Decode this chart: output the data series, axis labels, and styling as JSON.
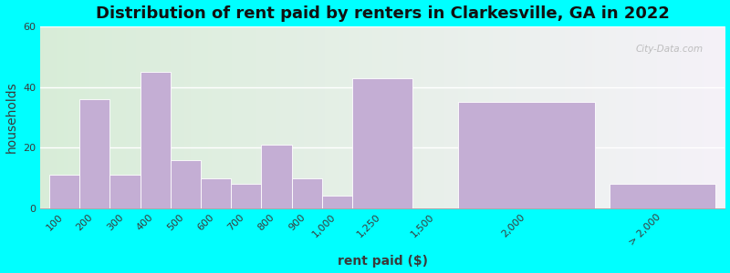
{
  "title": "Distribution of rent paid by renters in Clarkesville, GA in 2022",
  "xlabel": "rent paid ($)",
  "ylabel": "households",
  "background_color": "#00FFFF",
  "bar_color": "#c4aed4",
  "ylim": [
    0,
    60
  ],
  "yticks": [
    0,
    20,
    40,
    60
  ],
  "categories": [
    "100",
    "200",
    "300",
    "400",
    "500",
    "600",
    "700",
    "800",
    "900",
    "1,000",
    "1,250",
    "1,500",
    "2,000",
    "> 2,000"
  ],
  "values": [
    11,
    36,
    11,
    45,
    16,
    10,
    8,
    21,
    10,
    4,
    43,
    0,
    35,
    8
  ],
  "x_lefts": [
    0,
    1,
    2,
    3,
    4,
    5,
    6,
    7,
    8,
    9,
    10,
    12.5,
    13.5,
    18.5
  ],
  "bar_widths": [
    1,
    1,
    1,
    1,
    1,
    1,
    1,
    1,
    1,
    1,
    2,
    0.5,
    4.5,
    3.5
  ],
  "tick_at_center": true,
  "title_fontsize": 13,
  "axis_label_fontsize": 10,
  "tick_fontsize": 8,
  "watermark": "City-Data.com"
}
